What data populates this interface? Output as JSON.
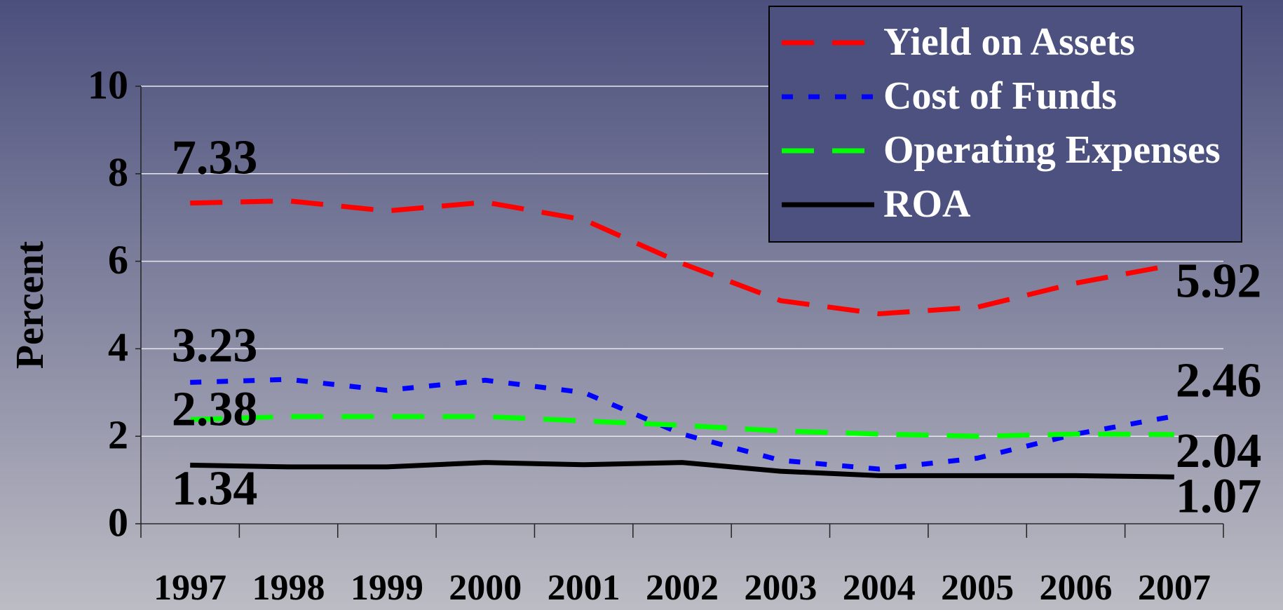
{
  "chart_data": {
    "type": "line",
    "y_label": "Percent",
    "categories": [
      "1997",
      "1998",
      "1999",
      "2000",
      "2001",
      "2002",
      "2003",
      "2004",
      "2005",
      "2006",
      "2007"
    ],
    "series": [
      {
        "name": "Yield on Assets",
        "color": "#ff0000",
        "line_style": "dashed",
        "values": [
          7.33,
          7.38,
          7.15,
          7.35,
          6.95,
          5.95,
          5.1,
          4.8,
          4.95,
          5.5,
          5.92
        ]
      },
      {
        "name": "Cost of Funds",
        "color": "#0000ff",
        "line_style": "dotted",
        "values": [
          3.23,
          3.3,
          3.05,
          3.28,
          3.0,
          2.05,
          1.45,
          1.25,
          1.5,
          2.05,
          2.46
        ]
      },
      {
        "name": "Operating Expenses",
        "color": "#00ff00",
        "line_style": "dashed",
        "values": [
          2.38,
          2.45,
          2.45,
          2.45,
          2.35,
          2.25,
          2.12,
          2.05,
          2.0,
          2.05,
          2.04
        ]
      },
      {
        "name": "ROA",
        "color": "#000000",
        "line_style": "solid",
        "values": [
          1.34,
          1.3,
          1.3,
          1.4,
          1.35,
          1.4,
          1.2,
          1.1,
          1.1,
          1.1,
          1.07
        ]
      }
    ],
    "ylim": [
      0,
      10
    ],
    "yticks": [
      0,
      2,
      4,
      6,
      8,
      10
    ],
    "grid": true,
    "legend": "top-right"
  }
}
